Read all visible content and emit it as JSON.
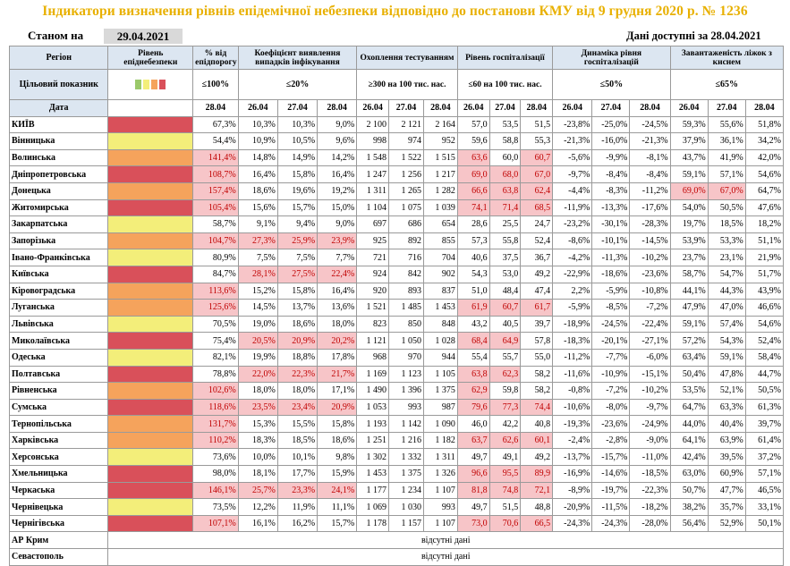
{
  "title": "Індикатори визначення рівнів епідемічної небезпеки відповідно до постанови КМУ від 9 грудня 2020 р. № 1236",
  "as_of_label": "Станом на",
  "as_of_date": "29.04.2021",
  "data_available": "Дані доступні за 28.04.2021",
  "headers": {
    "region": "Регіон",
    "level": "Рівень епіднебезпеки",
    "pct_threshold": "% від епідпорогу",
    "detect_coef": "Коефіцієнт виявлення випадків інфікування",
    "testing": "Охоплення тестуванням",
    "hosp_level": "Рівень госпіталізації",
    "hosp_dyn": "Динаміка рівня госпіталізацій",
    "oxygen": "Завантаженість ліжок з киснем"
  },
  "target_label": "Цільовий показник",
  "date_label": "Дата",
  "targets": {
    "pct": "≤100%",
    "detect": "≤20%",
    "testing": "≥300 на 100 тис. нас.",
    "hosp": "≤60 на 100 тис. нас.",
    "dyn": "≤50%",
    "oxygen": "≤65%"
  },
  "level_colors": {
    "green": "#9bc96a",
    "yellow": "#f3ee7a",
    "orange": "#f5a35c",
    "red": "#d9505a"
  },
  "dates": {
    "pct": "28.04",
    "d1": "26.04",
    "d2": "27.04",
    "d3": "28.04"
  },
  "rows": [
    {
      "name": "КИЇВ",
      "level": "red",
      "pct": "67,3%",
      "detect": [
        "10,3%",
        "10,3%",
        "9,0%"
      ],
      "test": [
        "2 100",
        "2 121",
        "2 164"
      ],
      "hosp": [
        "57,0",
        "53,5",
        "51,5"
      ],
      "dyn": [
        "-23,8%",
        "-25,0%",
        "-24,5%"
      ],
      "oxy": [
        "59,3%",
        "55,6%",
        "51,8%"
      ],
      "hl": {}
    },
    {
      "name": "Вінницька",
      "level": "yellow",
      "pct": "54,4%",
      "detect": [
        "10,9%",
        "10,5%",
        "9,6%"
      ],
      "test": [
        "998",
        "974",
        "952"
      ],
      "hosp": [
        "59,6",
        "58,8",
        "55,3"
      ],
      "dyn": [
        "-21,3%",
        "-16,0%",
        "-21,3%"
      ],
      "oxy": [
        "37,9%",
        "36,1%",
        "34,2%"
      ],
      "hl": {}
    },
    {
      "name": "Волинська",
      "level": "orange",
      "pct": "141,4%",
      "detect": [
        "14,8%",
        "14,9%",
        "14,2%"
      ],
      "test": [
        "1 548",
        "1 522",
        "1 515"
      ],
      "hosp": [
        "63,6",
        "60,0",
        "60,7"
      ],
      "dyn": [
        "-5,6%",
        "-9,9%",
        "-8,1%"
      ],
      "oxy": [
        "43,7%",
        "41,9%",
        "42,0%"
      ],
      "hl": {
        "pct": 1,
        "hosp": [
          1,
          0,
          1
        ]
      }
    },
    {
      "name": "Дніпропетровська",
      "level": "red",
      "pct": "108,7%",
      "detect": [
        "16,4%",
        "15,8%",
        "16,4%"
      ],
      "test": [
        "1 247",
        "1 256",
        "1 217"
      ],
      "hosp": [
        "69,0",
        "68,0",
        "67,0"
      ],
      "dyn": [
        "-9,7%",
        "-8,4%",
        "-8,4%"
      ],
      "oxy": [
        "59,1%",
        "57,1%",
        "54,6%"
      ],
      "hl": {
        "pct": 1,
        "hosp": [
          1,
          1,
          1
        ]
      }
    },
    {
      "name": "Донецька",
      "level": "orange",
      "pct": "157,4%",
      "detect": [
        "18,6%",
        "19,6%",
        "19,2%"
      ],
      "test": [
        "1 311",
        "1 265",
        "1 282"
      ],
      "hosp": [
        "66,6",
        "63,8",
        "62,4"
      ],
      "dyn": [
        "-4,4%",
        "-8,3%",
        "-11,2%"
      ],
      "oxy": [
        "69,0%",
        "67,0%",
        "64,7%"
      ],
      "hl": {
        "pct": 1,
        "hosp": [
          1,
          1,
          1
        ],
        "oxy": [
          1,
          1,
          0
        ]
      }
    },
    {
      "name": "Житомирська",
      "level": "red",
      "pct": "105,4%",
      "detect": [
        "15,6%",
        "15,7%",
        "15,0%"
      ],
      "test": [
        "1 104",
        "1 075",
        "1 039"
      ],
      "hosp": [
        "74,1",
        "71,4",
        "68,5"
      ],
      "dyn": [
        "-11,9%",
        "-13,3%",
        "-17,6%"
      ],
      "oxy": [
        "54,0%",
        "50,5%",
        "47,6%"
      ],
      "hl": {
        "pct": 1,
        "hosp": [
          1,
          1,
          1
        ]
      }
    },
    {
      "name": "Закарпатська",
      "level": "yellow",
      "pct": "58,7%",
      "detect": [
        "9,1%",
        "9,4%",
        "9,0%"
      ],
      "test": [
        "697",
        "686",
        "654"
      ],
      "hosp": [
        "28,6",
        "25,5",
        "24,7"
      ],
      "dyn": [
        "-23,2%",
        "-30,1%",
        "-28,3%"
      ],
      "oxy": [
        "19,7%",
        "18,5%",
        "18,2%"
      ],
      "hl": {}
    },
    {
      "name": "Запорізька",
      "level": "orange",
      "pct": "104,7%",
      "detect": [
        "27,3%",
        "25,9%",
        "23,9%"
      ],
      "test": [
        "925",
        "892",
        "855"
      ],
      "hosp": [
        "57,3",
        "55,8",
        "52,4"
      ],
      "dyn": [
        "-8,6%",
        "-10,1%",
        "-14,5%"
      ],
      "oxy": [
        "53,9%",
        "53,3%",
        "51,1%"
      ],
      "hl": {
        "pct": 1,
        "detect": [
          1,
          1,
          1
        ]
      }
    },
    {
      "name": "Івано-Франківська",
      "level": "yellow",
      "pct": "80,9%",
      "detect": [
        "7,5%",
        "7,5%",
        "7,7%"
      ],
      "test": [
        "721",
        "716",
        "704"
      ],
      "hosp": [
        "40,6",
        "37,5",
        "36,7"
      ],
      "dyn": [
        "-4,2%",
        "-11,3%",
        "-10,2%"
      ],
      "oxy": [
        "23,7%",
        "23,1%",
        "21,9%"
      ],
      "hl": {}
    },
    {
      "name": "Київська",
      "level": "red",
      "pct": "84,7%",
      "detect": [
        "28,1%",
        "27,5%",
        "22,4%"
      ],
      "test": [
        "924",
        "842",
        "902"
      ],
      "hosp": [
        "54,3",
        "53,0",
        "49,2"
      ],
      "dyn": [
        "-22,9%",
        "-18,6%",
        "-23,6%"
      ],
      "oxy": [
        "58,7%",
        "54,7%",
        "51,7%"
      ],
      "hl": {
        "detect": [
          1,
          1,
          1
        ]
      }
    },
    {
      "name": "Кіровоградська",
      "level": "orange",
      "pct": "113,6%",
      "detect": [
        "15,2%",
        "15,8%",
        "16,4%"
      ],
      "test": [
        "920",
        "893",
        "837"
      ],
      "hosp": [
        "51,0",
        "48,4",
        "47,4"
      ],
      "dyn": [
        "2,2%",
        "-5,9%",
        "-10,8%"
      ],
      "oxy": [
        "44,1%",
        "44,3%",
        "43,9%"
      ],
      "hl": {
        "pct": 1
      }
    },
    {
      "name": "Луганська",
      "level": "orange",
      "pct": "125,6%",
      "detect": [
        "14,5%",
        "13,7%",
        "13,6%"
      ],
      "test": [
        "1 521",
        "1 485",
        "1 453"
      ],
      "hosp": [
        "61,9",
        "60,7",
        "61,7"
      ],
      "dyn": [
        "-5,9%",
        "-8,5%",
        "-7,2%"
      ],
      "oxy": [
        "47,9%",
        "47,0%",
        "46,6%"
      ],
      "hl": {
        "pct": 1,
        "hosp": [
          1,
          1,
          1
        ]
      }
    },
    {
      "name": "Львівська",
      "level": "yellow",
      "pct": "70,5%",
      "detect": [
        "19,0%",
        "18,6%",
        "18,0%"
      ],
      "test": [
        "823",
        "850",
        "848"
      ],
      "hosp": [
        "43,2",
        "40,5",
        "39,7"
      ],
      "dyn": [
        "-18,9%",
        "-24,5%",
        "-22,4%"
      ],
      "oxy": [
        "59,1%",
        "57,4%",
        "54,6%"
      ],
      "hl": {}
    },
    {
      "name": "Миколаївська",
      "level": "red",
      "pct": "75,4%",
      "detect": [
        "20,5%",
        "20,9%",
        "20,2%"
      ],
      "test": [
        "1 121",
        "1 050",
        "1 028"
      ],
      "hosp": [
        "68,4",
        "64,9",
        "57,8"
      ],
      "dyn": [
        "-18,3%",
        "-20,1%",
        "-27,1%"
      ],
      "oxy": [
        "57,2%",
        "54,3%",
        "52,4%"
      ],
      "hl": {
        "detect": [
          1,
          1,
          1
        ],
        "hosp": [
          1,
          1,
          0
        ]
      }
    },
    {
      "name": "Одеська",
      "level": "yellow",
      "pct": "82,1%",
      "detect": [
        "19,9%",
        "18,8%",
        "17,8%"
      ],
      "test": [
        "968",
        "970",
        "944"
      ],
      "hosp": [
        "55,4",
        "55,7",
        "55,0"
      ],
      "dyn": [
        "-11,2%",
        "-7,7%",
        "-6,0%"
      ],
      "oxy": [
        "63,4%",
        "59,1%",
        "58,4%"
      ],
      "hl": {}
    },
    {
      "name": "Полтавська",
      "level": "red",
      "pct": "78,8%",
      "detect": [
        "22,0%",
        "22,3%",
        "21,7%"
      ],
      "test": [
        "1 169",
        "1 123",
        "1 105"
      ],
      "hosp": [
        "63,8",
        "62,3",
        "58,2"
      ],
      "dyn": [
        "-11,6%",
        "-10,9%",
        "-15,1%"
      ],
      "oxy": [
        "50,4%",
        "47,8%",
        "44,7%"
      ],
      "hl": {
        "detect": [
          1,
          1,
          1
        ],
        "hosp": [
          1,
          1,
          0
        ]
      }
    },
    {
      "name": "Рівненська",
      "level": "orange",
      "pct": "102,6%",
      "detect": [
        "18,0%",
        "18,0%",
        "17,1%"
      ],
      "test": [
        "1 490",
        "1 396",
        "1 375"
      ],
      "hosp": [
        "62,9",
        "59,8",
        "58,2"
      ],
      "dyn": [
        "-0,8%",
        "-7,2%",
        "-10,2%"
      ],
      "oxy": [
        "53,5%",
        "52,1%",
        "50,5%"
      ],
      "hl": {
        "pct": 1,
        "hosp": [
          1,
          0,
          0
        ]
      }
    },
    {
      "name": "Сумська",
      "level": "red",
      "pct": "118,6%",
      "detect": [
        "23,5%",
        "23,4%",
        "20,9%"
      ],
      "test": [
        "1 053",
        "993",
        "987"
      ],
      "hosp": [
        "79,6",
        "77,3",
        "74,4"
      ],
      "dyn": [
        "-10,6%",
        "-8,0%",
        "-9,7%"
      ],
      "oxy": [
        "64,7%",
        "63,3%",
        "61,3%"
      ],
      "hl": {
        "pct": 1,
        "detect": [
          1,
          1,
          1
        ],
        "hosp": [
          1,
          1,
          1
        ]
      }
    },
    {
      "name": "Тернопільська",
      "level": "orange",
      "pct": "131,7%",
      "detect": [
        "15,3%",
        "15,5%",
        "15,8%"
      ],
      "test": [
        "1 193",
        "1 142",
        "1 090"
      ],
      "hosp": [
        "46,0",
        "42,2",
        "40,8"
      ],
      "dyn": [
        "-19,3%",
        "-23,6%",
        "-24,9%"
      ],
      "oxy": [
        "44,0%",
        "40,4%",
        "39,7%"
      ],
      "hl": {
        "pct": 1
      }
    },
    {
      "name": "Харківська",
      "level": "orange",
      "pct": "110,2%",
      "detect": [
        "18,3%",
        "18,5%",
        "18,6%"
      ],
      "test": [
        "1 251",
        "1 216",
        "1 182"
      ],
      "hosp": [
        "63,7",
        "62,6",
        "60,1"
      ],
      "dyn": [
        "-2,4%",
        "-2,8%",
        "-9,0%"
      ],
      "oxy": [
        "64,1%",
        "63,9%",
        "61,4%"
      ],
      "hl": {
        "pct": 1,
        "hosp": [
          1,
          1,
          1
        ]
      }
    },
    {
      "name": "Херсонська",
      "level": "yellow",
      "pct": "73,6%",
      "detect": [
        "10,0%",
        "10,1%",
        "9,8%"
      ],
      "test": [
        "1 302",
        "1 332",
        "1 311"
      ],
      "hosp": [
        "49,7",
        "49,1",
        "49,2"
      ],
      "dyn": [
        "-13,7%",
        "-15,7%",
        "-11,0%"
      ],
      "oxy": [
        "42,4%",
        "39,5%",
        "37,2%"
      ],
      "hl": {}
    },
    {
      "name": "Хмельницька",
      "level": "red",
      "pct": "98,0%",
      "detect": [
        "18,1%",
        "17,7%",
        "15,9%"
      ],
      "test": [
        "1 453",
        "1 375",
        "1 326"
      ],
      "hosp": [
        "96,6",
        "95,5",
        "89,9"
      ],
      "dyn": [
        "-16,9%",
        "-14,6%",
        "-18,5%"
      ],
      "oxy": [
        "63,0%",
        "60,9%",
        "57,1%"
      ],
      "hl": {
        "hosp": [
          1,
          1,
          1
        ]
      }
    },
    {
      "name": "Черкаська",
      "level": "red",
      "pct": "146,1%",
      "detect": [
        "25,7%",
        "23,3%",
        "24,1%"
      ],
      "test": [
        "1 177",
        "1 234",
        "1 107"
      ],
      "hosp": [
        "81,8",
        "74,8",
        "72,1"
      ],
      "dyn": [
        "-8,9%",
        "-19,7%",
        "-22,3%"
      ],
      "oxy": [
        "50,7%",
        "47,7%",
        "46,5%"
      ],
      "hl": {
        "pct": 1,
        "detect": [
          1,
          1,
          1
        ],
        "hosp": [
          1,
          1,
          1
        ]
      }
    },
    {
      "name": "Чернівецька",
      "level": "yellow",
      "pct": "73,5%",
      "detect": [
        "12,2%",
        "11,9%",
        "11,1%"
      ],
      "test": [
        "1 069",
        "1 030",
        "993"
      ],
      "hosp": [
        "49,7",
        "51,5",
        "48,8"
      ],
      "dyn": [
        "-20,9%",
        "-11,5%",
        "-18,2%"
      ],
      "oxy": [
        "38,2%",
        "35,7%",
        "33,1%"
      ],
      "hl": {}
    },
    {
      "name": "Чернігівська",
      "level": "red",
      "pct": "107,1%",
      "detect": [
        "16,1%",
        "16,2%",
        "15,7%"
      ],
      "test": [
        "1 178",
        "1 157",
        "1 107"
      ],
      "hosp": [
        "73,0",
        "70,6",
        "66,5"
      ],
      "dyn": [
        "-24,3%",
        "-24,3%",
        "-28,0%"
      ],
      "oxy": [
        "56,4%",
        "52,9%",
        "50,1%"
      ],
      "hl": {
        "pct": 1,
        "hosp": [
          1,
          1,
          1
        ]
      }
    }
  ],
  "missing_rows": [
    {
      "name": "АР Крим",
      "text": "відсутні дані"
    },
    {
      "name": "Севастополь",
      "text": "відсутні дані"
    }
  ]
}
